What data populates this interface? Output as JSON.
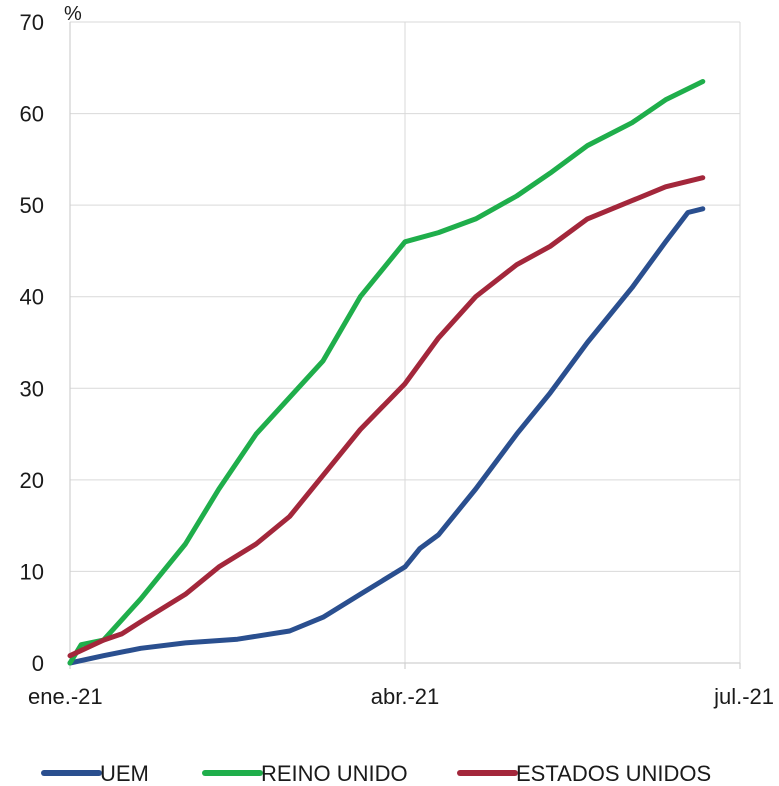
{
  "chart_data": {
    "type": "line",
    "unit_label": "%",
    "ylim": [
      0,
      70
    ],
    "y_ticks": [
      0,
      10,
      20,
      30,
      40,
      50,
      60,
      70
    ],
    "x_domain": [
      "2021-01-01",
      "2021-06-30"
    ],
    "x_ticks": [
      {
        "date": "2021-01-01",
        "label": "ene.-21"
      },
      {
        "date": "2021-04-01",
        "label": "abr.-21"
      },
      {
        "date": "2021-06-30",
        "label": "jul.-21"
      }
    ],
    "grid": {
      "horizontal": true,
      "vertical": true
    },
    "legend_position": "bottom",
    "series": [
      {
        "name": "UEM",
        "color": "#2a4f8f",
        "points": [
          [
            "2021-01-01",
            0
          ],
          [
            "2021-01-10",
            0.8
          ],
          [
            "2021-01-20",
            1.6
          ],
          [
            "2021-02-01",
            2.2
          ],
          [
            "2021-02-15",
            2.6
          ],
          [
            "2021-03-01",
            3.5
          ],
          [
            "2021-03-10",
            5
          ],
          [
            "2021-03-20",
            7.5
          ],
          [
            "2021-04-01",
            10.5
          ],
          [
            "2021-04-05",
            12.5
          ],
          [
            "2021-04-10",
            14
          ],
          [
            "2021-04-20",
            19
          ],
          [
            "2021-05-01",
            25
          ],
          [
            "2021-05-10",
            29.5
          ],
          [
            "2021-05-20",
            35
          ],
          [
            "2021-06-01",
            41
          ],
          [
            "2021-06-10",
            46
          ],
          [
            "2021-06-16",
            49.2
          ],
          [
            "2021-06-20",
            49.6
          ]
        ]
      },
      {
        "name": "REINO UNIDO",
        "color": "#1fae4b",
        "points": [
          [
            "2021-01-01",
            0
          ],
          [
            "2021-01-04",
            2
          ],
          [
            "2021-01-10",
            2.5
          ],
          [
            "2021-01-20",
            7
          ],
          [
            "2021-02-01",
            13
          ],
          [
            "2021-02-10",
            19
          ],
          [
            "2021-02-20",
            25
          ],
          [
            "2021-03-01",
            29
          ],
          [
            "2021-03-10",
            33
          ],
          [
            "2021-03-20",
            40
          ],
          [
            "2021-04-01",
            46
          ],
          [
            "2021-04-10",
            47
          ],
          [
            "2021-04-20",
            48.5
          ],
          [
            "2021-05-01",
            51
          ],
          [
            "2021-05-10",
            53.5
          ],
          [
            "2021-05-20",
            56.5
          ],
          [
            "2021-06-01",
            59
          ],
          [
            "2021-06-10",
            61.5
          ],
          [
            "2021-06-20",
            63.5
          ]
        ]
      },
      {
        "name": "ESTADOS UNIDOS",
        "color": "#a3273b",
        "points": [
          [
            "2021-01-01",
            0.8
          ],
          [
            "2021-01-10",
            2.5
          ],
          [
            "2021-01-15",
            3.2
          ],
          [
            "2021-01-20",
            4.5
          ],
          [
            "2021-02-01",
            7.5
          ],
          [
            "2021-02-10",
            10.5
          ],
          [
            "2021-02-20",
            13
          ],
          [
            "2021-03-01",
            16
          ],
          [
            "2021-03-10",
            20.5
          ],
          [
            "2021-03-20",
            25.5
          ],
          [
            "2021-04-01",
            30.5
          ],
          [
            "2021-04-10",
            35.5
          ],
          [
            "2021-04-20",
            40
          ],
          [
            "2021-05-01",
            43.5
          ],
          [
            "2021-05-10",
            45.5
          ],
          [
            "2021-05-20",
            48.5
          ],
          [
            "2021-06-01",
            50.5
          ],
          [
            "2021-06-10",
            52
          ],
          [
            "2021-06-20",
            53
          ]
        ]
      }
    ]
  }
}
